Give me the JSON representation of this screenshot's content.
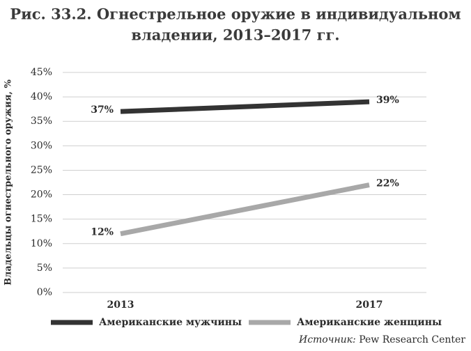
{
  "chart_data": {
    "type": "line",
    "title": "Рис. 33.2. Огнестрельное оружие в индивидуальном",
    "subtitle": "владении, 2013–2017 гг.",
    "y_label": "Владельцы огнестрельного оружия, %",
    "categories": [
      "2013",
      "2017"
    ],
    "series": [
      {
        "name": "Американские мужчины",
        "color": "#333333",
        "values": [
          37,
          39
        ],
        "value_labels": [
          "37%",
          "39%"
        ]
      },
      {
        "name": "Американские женщины",
        "color": "#a8a8a8",
        "values": [
          12,
          22
        ],
        "value_labels": [
          "12%",
          "22%"
        ]
      }
    ],
    "ylim": [
      0,
      45
    ],
    "yticks": [
      {
        "value": 0,
        "label": "0%"
      },
      {
        "value": 5,
        "label": "5%"
      },
      {
        "value": 10,
        "label": "10%"
      },
      {
        "value": 15,
        "label": "15%"
      },
      {
        "value": 20,
        "label": "20%"
      },
      {
        "value": 25,
        "label": "25%"
      },
      {
        "value": 30,
        "label": "30%"
      },
      {
        "value": 35,
        "label": "35%"
      },
      {
        "value": 40,
        "label": "40%"
      },
      {
        "value": 45,
        "label": "45%"
      }
    ],
    "grid": true,
    "legend": "bottom",
    "source_prefix": "Источник:",
    "source": "Pew Research Center"
  }
}
